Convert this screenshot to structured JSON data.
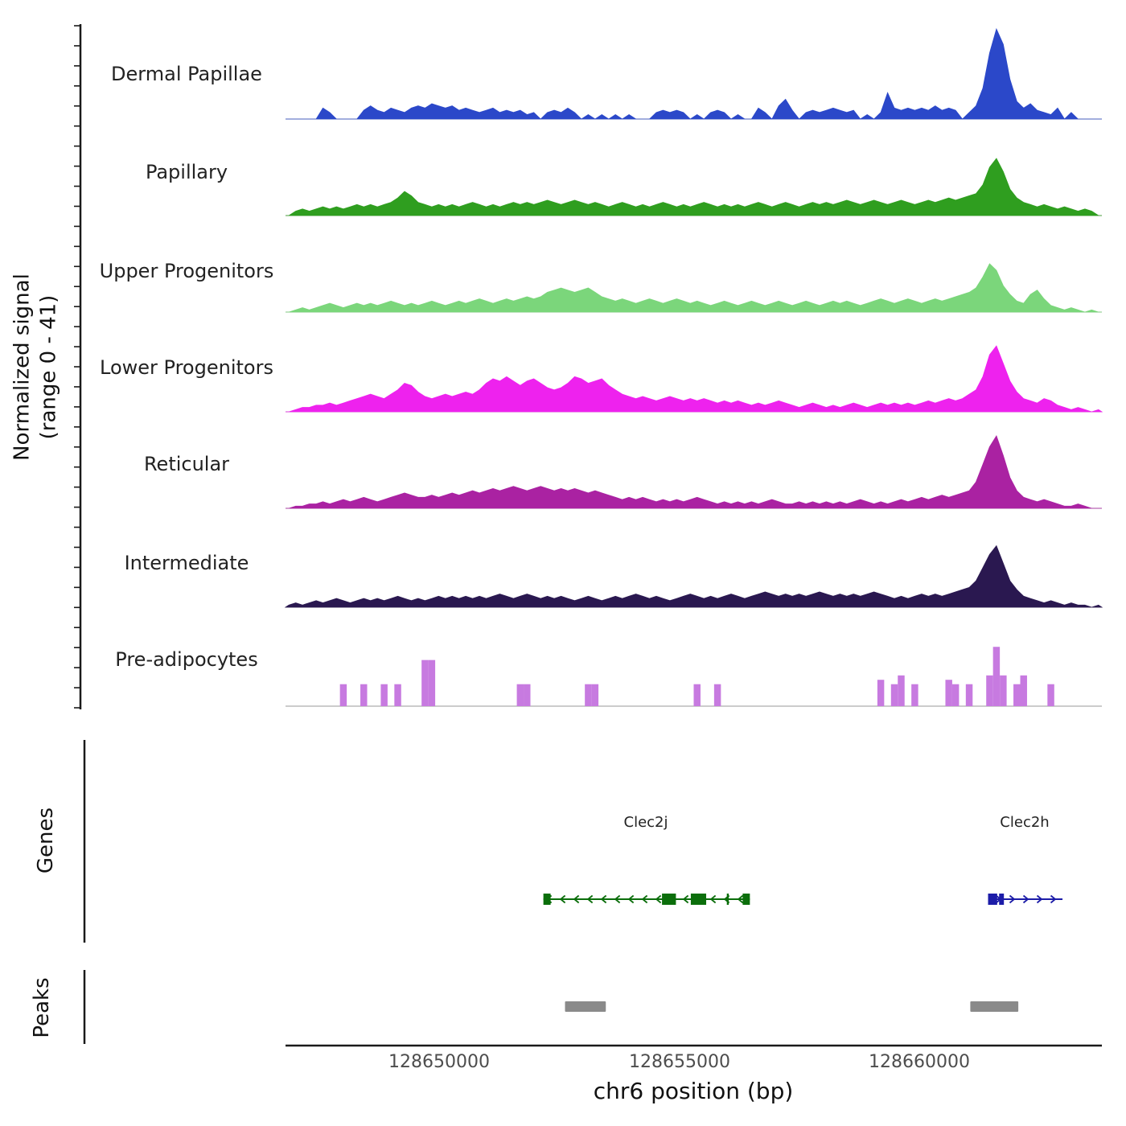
{
  "labels": {
    "y_line1": "Normalized signal",
    "y_line2": "(range 0 - 41)",
    "genes_section": "Genes",
    "peaks_section": "Peaks",
    "x_title": "chr6 position (bp)"
  },
  "chart_data": {
    "type": "area",
    "title": "",
    "xlabel": "chr6 position (bp)",
    "ylabel": "Normalized signal (range 0 - 41)",
    "signal_range": [
      0,
      41
    ],
    "x_start": 128646800,
    "x_end": 128663800,
    "bins": 120,
    "x_ticks": [
      {
        "pos": 128650000,
        "label": "128650000"
      },
      {
        "pos": 128655000,
        "label": "128655000"
      },
      {
        "pos": 128660000,
        "label": "128660000"
      }
    ],
    "baseline_color": "#999999",
    "axis_color": "#1a1a1a",
    "tracks": [
      {
        "name": "Dermal Papillae",
        "color": "#2b48c9",
        "style": "area",
        "values": [
          0,
          0,
          0,
          0,
          0,
          5,
          3,
          0,
          0,
          0,
          0,
          4,
          6,
          4,
          3,
          5,
          4,
          3,
          5,
          6,
          5,
          7,
          6,
          5,
          6,
          4,
          5,
          4,
          3,
          4,
          5,
          3,
          4,
          3,
          4,
          2,
          3,
          0,
          3,
          4,
          3,
          5,
          3,
          0,
          2,
          0,
          2,
          0,
          2,
          0,
          2,
          0,
          0,
          0,
          3,
          4,
          3,
          4,
          3,
          0,
          2,
          0,
          3,
          4,
          3,
          0,
          2,
          0,
          0,
          5,
          3,
          0,
          6,
          9,
          4,
          0,
          3,
          4,
          3,
          4,
          5,
          4,
          3,
          4,
          0,
          2,
          0,
          3,
          12,
          5,
          4,
          5,
          4,
          5,
          4,
          6,
          4,
          5,
          4,
          0,
          3,
          6,
          14,
          30,
          41,
          34,
          18,
          8,
          5,
          7,
          4,
          3,
          2,
          5,
          0,
          3,
          0,
          0,
          0,
          0
        ]
      },
      {
        "name": "Papillary",
        "color": "#2f9e1f",
        "style": "area",
        "values": [
          0,
          2,
          3,
          2,
          3,
          4,
          3,
          4,
          3,
          4,
          5,
          4,
          5,
          4,
          5,
          6,
          8,
          11,
          9,
          6,
          5,
          4,
          5,
          4,
          5,
          4,
          5,
          6,
          5,
          4,
          5,
          4,
          5,
          6,
          5,
          6,
          5,
          6,
          7,
          6,
          5,
          6,
          7,
          6,
          5,
          6,
          5,
          4,
          5,
          6,
          5,
          4,
          5,
          4,
          5,
          6,
          5,
          4,
          5,
          4,
          5,
          6,
          5,
          4,
          5,
          4,
          5,
          4,
          5,
          6,
          5,
          4,
          5,
          6,
          5,
          4,
          5,
          6,
          5,
          6,
          5,
          6,
          7,
          6,
          5,
          6,
          7,
          6,
          5,
          6,
          7,
          6,
          5,
          6,
          7,
          6,
          7,
          8,
          7,
          8,
          9,
          10,
          14,
          22,
          26,
          20,
          12,
          8,
          6,
          5,
          4,
          5,
          4,
          3,
          4,
          3,
          2,
          3,
          2,
          0
        ]
      },
      {
        "name": "Upper Progenitors",
        "color": "#7bd67b",
        "style": "area",
        "values": [
          0,
          1,
          2,
          1,
          2,
          3,
          4,
          3,
          2,
          3,
          4,
          3,
          4,
          3,
          4,
          5,
          4,
          3,
          4,
          3,
          4,
          5,
          4,
          3,
          4,
          5,
          4,
          5,
          6,
          5,
          4,
          5,
          6,
          5,
          6,
          7,
          6,
          7,
          9,
          10,
          11,
          10,
          9,
          10,
          11,
          9,
          7,
          6,
          5,
          6,
          5,
          4,
          5,
          6,
          5,
          4,
          5,
          6,
          5,
          4,
          5,
          4,
          3,
          4,
          5,
          4,
          3,
          4,
          5,
          4,
          3,
          4,
          5,
          4,
          3,
          4,
          5,
          4,
          3,
          4,
          5,
          4,
          5,
          4,
          3,
          4,
          5,
          6,
          5,
          4,
          5,
          6,
          5,
          4,
          5,
          6,
          5,
          6,
          7,
          8,
          9,
          11,
          16,
          22,
          19,
          12,
          8,
          5,
          4,
          8,
          10,
          6,
          3,
          2,
          1,
          2,
          1,
          0,
          1,
          0
        ]
      },
      {
        "name": "Lower Progenitors",
        "color": "#ee22ee",
        "style": "area",
        "values": [
          0,
          1,
          2,
          2,
          3,
          3,
          4,
          3,
          4,
          5,
          6,
          7,
          8,
          7,
          6,
          8,
          10,
          13,
          12,
          9,
          7,
          6,
          7,
          8,
          7,
          8,
          9,
          8,
          10,
          13,
          15,
          14,
          16,
          14,
          12,
          14,
          15,
          13,
          11,
          10,
          11,
          13,
          16,
          15,
          13,
          14,
          15,
          12,
          10,
          8,
          7,
          6,
          7,
          6,
          5,
          6,
          7,
          6,
          5,
          6,
          5,
          6,
          5,
          4,
          5,
          4,
          5,
          4,
          3,
          4,
          3,
          4,
          5,
          4,
          3,
          2,
          3,
          4,
          3,
          2,
          3,
          2,
          3,
          4,
          3,
          2,
          3,
          4,
          3,
          4,
          3,
          4,
          3,
          4,
          5,
          4,
          5,
          6,
          5,
          6,
          8,
          10,
          16,
          26,
          30,
          22,
          14,
          9,
          6,
          5,
          4,
          6,
          5,
          3,
          2,
          1,
          2,
          1,
          0,
          1
        ]
      },
      {
        "name": "Reticular",
        "color": "#aa22a2",
        "style": "area",
        "values": [
          0,
          1,
          1,
          2,
          2,
          3,
          2,
          3,
          4,
          3,
          4,
          5,
          4,
          3,
          4,
          5,
          6,
          7,
          6,
          5,
          5,
          6,
          5,
          6,
          7,
          6,
          7,
          8,
          7,
          8,
          9,
          8,
          9,
          10,
          9,
          8,
          9,
          10,
          9,
          8,
          9,
          8,
          9,
          8,
          7,
          8,
          7,
          6,
          5,
          4,
          5,
          4,
          5,
          4,
          3,
          4,
          3,
          4,
          3,
          4,
          5,
          4,
          3,
          2,
          3,
          2,
          3,
          2,
          3,
          2,
          3,
          4,
          3,
          2,
          2,
          3,
          2,
          3,
          2,
          3,
          2,
          3,
          2,
          3,
          4,
          3,
          2,
          3,
          2,
          3,
          4,
          3,
          4,
          5,
          4,
          5,
          6,
          5,
          6,
          7,
          8,
          12,
          20,
          28,
          33,
          24,
          14,
          8,
          5,
          4,
          3,
          4,
          3,
          2,
          1,
          1,
          2,
          1,
          0,
          0
        ]
      },
      {
        "name": "Intermediate",
        "color": "#2a1850",
        "style": "area",
        "values": [
          1,
          2,
          1,
          2,
          3,
          2,
          3,
          4,
          3,
          2,
          3,
          4,
          3,
          4,
          3,
          4,
          5,
          4,
          3,
          4,
          3,
          4,
          5,
          4,
          5,
          4,
          5,
          4,
          5,
          4,
          5,
          6,
          5,
          4,
          5,
          6,
          5,
          4,
          5,
          4,
          5,
          4,
          3,
          4,
          5,
          4,
          3,
          4,
          5,
          4,
          5,
          6,
          5,
          4,
          5,
          4,
          3,
          4,
          5,
          6,
          5,
          4,
          5,
          4,
          5,
          6,
          5,
          4,
          5,
          6,
          7,
          6,
          5,
          6,
          5,
          6,
          5,
          6,
          7,
          6,
          5,
          6,
          5,
          6,
          5,
          6,
          7,
          6,
          5,
          4,
          5,
          4,
          5,
          6,
          5,
          6,
          5,
          6,
          7,
          8,
          9,
          12,
          18,
          24,
          28,
          20,
          12,
          8,
          5,
          4,
          3,
          2,
          3,
          2,
          1,
          2,
          1,
          1,
          0,
          1
        ]
      },
      {
        "name": "Pre-adipocytes",
        "color": "#c77ae0",
        "style": "bars",
        "values": [
          0,
          0,
          0,
          0,
          0,
          0,
          0,
          0,
          10,
          0,
          0,
          10,
          0,
          0,
          10,
          0,
          10,
          0,
          0,
          0,
          21,
          21,
          0,
          0,
          0,
          0,
          0,
          0,
          0,
          0,
          0,
          0,
          0,
          0,
          10,
          10,
          0,
          0,
          0,
          0,
          0,
          0,
          0,
          0,
          10,
          10,
          0,
          0,
          0,
          0,
          0,
          0,
          0,
          0,
          0,
          0,
          0,
          0,
          0,
          0,
          10,
          0,
          0,
          10,
          0,
          0,
          0,
          0,
          0,
          0,
          0,
          0,
          0,
          0,
          0,
          0,
          0,
          0,
          0,
          0,
          0,
          0,
          0,
          0,
          0,
          0,
          0,
          12,
          0,
          10,
          14,
          0,
          10,
          0,
          0,
          0,
          0,
          12,
          10,
          0,
          10,
          0,
          0,
          14,
          27,
          14,
          0,
          10,
          14,
          0,
          0,
          0,
          10,
          0,
          0,
          0,
          0,
          0,
          0,
          0
        ]
      }
    ],
    "genes": [
      {
        "name": "Clec2j",
        "color": "#0b6e0b",
        "strand": "-",
        "start": 128652170,
        "end": 128656470,
        "exons": [
          [
            128652170,
            128652320
          ],
          [
            128654640,
            128654930
          ],
          [
            128655240,
            128655560
          ],
          [
            128655990,
            128656030
          ],
          [
            128656320,
            128656470
          ]
        ]
      },
      {
        "name": "Clec2h",
        "color": "#1c1ca8",
        "strand": "+",
        "start": 128661430,
        "end": 128662980,
        "exons": [
          [
            128661430,
            128661620
          ],
          [
            128661660,
            128661760
          ]
        ]
      }
    ],
    "peaks": [
      {
        "start": 128652620,
        "end": 128653470
      },
      {
        "start": 128661060,
        "end": 128662060
      }
    ],
    "peak_color": "#8a8a8a"
  }
}
